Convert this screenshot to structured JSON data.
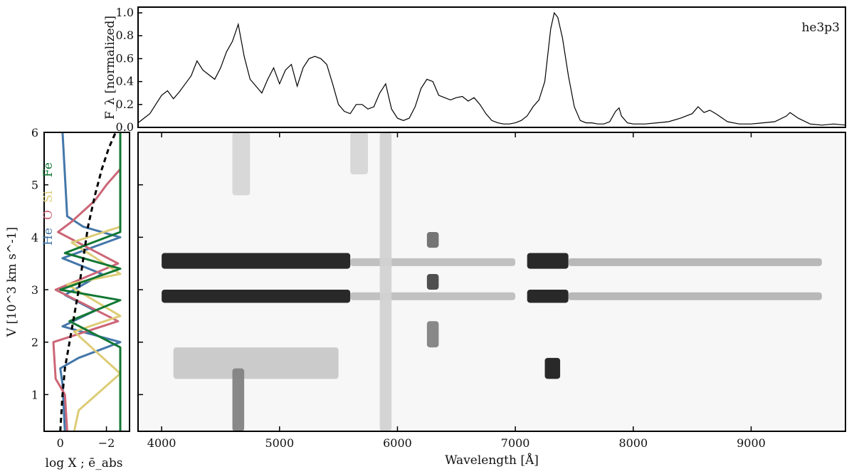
{
  "chart_data": [
    {
      "type": "line",
      "panel": "spectrum",
      "ylabel": "F_λ [normalized]",
      "annotation": "he3p3",
      "xlim": [
        3800,
        9800
      ],
      "ylim": [
        0,
        1.05
      ],
      "yticks": [
        "0.0",
        "0.2",
        "0.4",
        "0.6",
        "0.8",
        "1.0"
      ],
      "series": [
        {
          "x": [
            3800,
            3850,
            3900,
            3950,
            4000,
            4050,
            4100,
            4150,
            4200,
            4250,
            4300,
            4350,
            4400,
            4450,
            4500,
            4550,
            4600,
            4650,
            4700,
            4750,
            4800,
            4850,
            4900,
            4950,
            5000,
            5050,
            5100,
            5150,
            5200,
            5250,
            5300,
            5350,
            5400,
            5450,
            5500,
            5550,
            5600,
            5650,
            5700,
            5750,
            5800,
            5850,
            5900,
            5950,
            6000,
            6050,
            6100,
            6150,
            6200,
            6250,
            6300,
            6350,
            6400,
            6450,
            6500,
            6550,
            6600,
            6650,
            6700,
            6750,
            6800,
            6850,
            6900,
            6950,
            7000,
            7050,
            7100,
            7150,
            7200,
            7250,
            7300,
            7330,
            7360,
            7400,
            7450,
            7500,
            7550,
            7600,
            7650,
            7700,
            7750,
            7800,
            7850,
            7880,
            7900,
            7950,
            8000,
            8100,
            8200,
            8300,
            8400,
            8500,
            8550,
            8600,
            8650,
            8700,
            8800,
            8900,
            9000,
            9100,
            9200,
            9300,
            9330,
            9400,
            9500,
            9600,
            9700,
            9800
          ],
          "y": [
            0.04,
            0.08,
            0.12,
            0.2,
            0.28,
            0.32,
            0.25,
            0.31,
            0.38,
            0.45,
            0.58,
            0.5,
            0.46,
            0.42,
            0.52,
            0.66,
            0.75,
            0.9,
            0.62,
            0.42,
            0.36,
            0.3,
            0.42,
            0.52,
            0.38,
            0.5,
            0.55,
            0.36,
            0.52,
            0.6,
            0.62,
            0.6,
            0.55,
            0.38,
            0.2,
            0.14,
            0.12,
            0.2,
            0.2,
            0.16,
            0.18,
            0.3,
            0.38,
            0.16,
            0.08,
            0.06,
            0.08,
            0.18,
            0.34,
            0.42,
            0.4,
            0.28,
            0.26,
            0.24,
            0.26,
            0.27,
            0.23,
            0.26,
            0.2,
            0.12,
            0.06,
            0.04,
            0.03,
            0.03,
            0.04,
            0.06,
            0.1,
            0.18,
            0.24,
            0.4,
            0.86,
            1.0,
            0.96,
            0.78,
            0.45,
            0.18,
            0.06,
            0.04,
            0.04,
            0.03,
            0.03,
            0.05,
            0.14,
            0.17,
            0.1,
            0.04,
            0.03,
            0.03,
            0.04,
            0.05,
            0.08,
            0.12,
            0.18,
            0.13,
            0.15,
            0.12,
            0.05,
            0.03,
            0.03,
            0.04,
            0.05,
            0.1,
            0.13,
            0.08,
            0.03,
            0.02,
            0.03,
            0.02
          ]
        }
      ]
    },
    {
      "type": "heatmap",
      "panel": "map",
      "xlabel": "Wavelength [Å]",
      "ylabel": "V [10^3 km s^-1]",
      "xlim": [
        3800,
        9800
      ],
      "ylim": [
        0.3,
        6.0
      ],
      "xticks": [
        "4000",
        "5000",
        "6000",
        "7000",
        "8000",
        "9000"
      ],
      "yticks": [
        "1",
        "2",
        "3",
        "4",
        "5",
        "6"
      ],
      "bands": [
        {
          "x0": 4000,
          "x1": 5600,
          "v0": 3.4,
          "v1": 3.7,
          "intensity": 1.0
        },
        {
          "x0": 4000,
          "x1": 5600,
          "v0": 2.75,
          "v1": 3.0,
          "intensity": 1.0
        },
        {
          "x0": 5600,
          "x1": 7000,
          "v0": 3.45,
          "v1": 3.6,
          "intensity": 0.2
        },
        {
          "x0": 5600,
          "x1": 7000,
          "v0": 2.8,
          "v1": 2.95,
          "intensity": 0.2
        },
        {
          "x0": 7100,
          "x1": 7450,
          "v0": 3.4,
          "v1": 3.7,
          "intensity": 1.0
        },
        {
          "x0": 7100,
          "x1": 7450,
          "v0": 2.75,
          "v1": 3.0,
          "intensity": 1.0
        },
        {
          "x0": 7450,
          "x1": 9600,
          "v0": 3.45,
          "v1": 3.6,
          "intensity": 0.25
        },
        {
          "x0": 7450,
          "x1": 9600,
          "v0": 2.8,
          "v1": 2.95,
          "intensity": 0.25
        },
        {
          "x0": 6250,
          "x1": 6350,
          "v0": 3.8,
          "v1": 4.1,
          "intensity": 0.6
        },
        {
          "x0": 6250,
          "x1": 6350,
          "v0": 3.0,
          "v1": 3.3,
          "intensity": 0.8
        },
        {
          "x0": 6250,
          "x1": 6350,
          "v0": 1.9,
          "v1": 2.4,
          "intensity": 0.5
        },
        {
          "x0": 7250,
          "x1": 7380,
          "v0": 1.3,
          "v1": 1.7,
          "intensity": 1.0
        },
        {
          "x0": 4100,
          "x1": 5500,
          "v0": 1.3,
          "v1": 1.9,
          "intensity": 0.15
        },
        {
          "x0": 4600,
          "x1": 4700,
          "v0": 0.3,
          "v1": 1.5,
          "intensity": 0.5
        },
        {
          "x0": 5850,
          "x1": 5950,
          "v0": 0.3,
          "v1": 6.0,
          "intensity": 0.1
        },
        {
          "x0": 4600,
          "x1": 4750,
          "v0": 4.8,
          "v1": 6.0,
          "intensity": 0.08
        },
        {
          "x0": 5600,
          "x1": 5750,
          "v0": 5.2,
          "v1": 6.0,
          "intensity": 0.08
        }
      ]
    },
    {
      "type": "line",
      "panel": "abundances",
      "xlabel": "log X ; ē_abs",
      "xticks": [
        "0",
        "−2"
      ],
      "xlim": [
        0.7,
        -3.0
      ],
      "ylim": [
        0.3,
        6.0
      ],
      "legend": [
        {
          "name": "He",
          "color": "#4477aa"
        },
        {
          "name": "O",
          "color": "#cc6677"
        },
        {
          "name": "Si",
          "color": "#ddcc77"
        },
        {
          "name": "Fe",
          "color": "#117733"
        }
      ],
      "series": [
        {
          "name": "He",
          "color": "#4477aa",
          "x": [
            -0.2,
            -0.1,
            0.0,
            -0.8,
            -2.6,
            -0.1,
            -1.5,
            -0.2,
            -1.8,
            -0.1,
            -2.6,
            -1.0,
            -0.3,
            -0.1
          ],
          "y": [
            0.3,
            1.2,
            1.5,
            1.7,
            2.0,
            2.3,
            2.6,
            2.9,
            3.3,
            3.6,
            4.0,
            4.2,
            4.4,
            6.0
          ]
        },
        {
          "name": "O",
          "color": "#cc6677",
          "x": [
            -0.3,
            -0.2,
            0.2,
            0.3,
            -2.5,
            0.2,
            -2.5,
            0.1,
            -0.5,
            -1.0,
            -1.5,
            -2.0,
            -2.6,
            -2.6
          ],
          "y": [
            0.3,
            1.0,
            1.3,
            2.0,
            2.4,
            3.0,
            3.5,
            4.1,
            4.3,
            4.5,
            4.7,
            5.0,
            5.3,
            6.0
          ]
        },
        {
          "name": "Si",
          "color": "#ddcc77",
          "x": [
            -0.6,
            -0.8,
            -2.6,
            -0.6,
            -2.6,
            -0.3,
            -2.6,
            -0.5,
            -2.6,
            -2.6
          ],
          "y": [
            0.3,
            0.7,
            1.4,
            2.2,
            2.5,
            3.1,
            3.3,
            3.9,
            4.2,
            6.0
          ]
        },
        {
          "name": "Fe",
          "color": "#117733",
          "x": [
            -2.6,
            -2.6,
            -0.4,
            -2.6,
            0.0,
            -2.6,
            -0.2,
            -2.6,
            -2.6
          ],
          "y": [
            0.3,
            1.9,
            2.4,
            2.8,
            3.0,
            3.4,
            3.7,
            4.1,
            6.0
          ]
        },
        {
          "name": "ē_abs",
          "color": "#000000",
          "dashed": true,
          "x": [
            0.0,
            -0.1,
            -0.2,
            -0.4,
            -0.8,
            -1.0,
            -1.2,
            -1.5,
            -1.8,
            -2.1,
            -2.4
          ],
          "y": [
            0.3,
            1.0,
            1.5,
            2.0,
            3.0,
            3.6,
            4.2,
            4.8,
            5.3,
            5.7,
            6.0
          ]
        }
      ]
    }
  ]
}
